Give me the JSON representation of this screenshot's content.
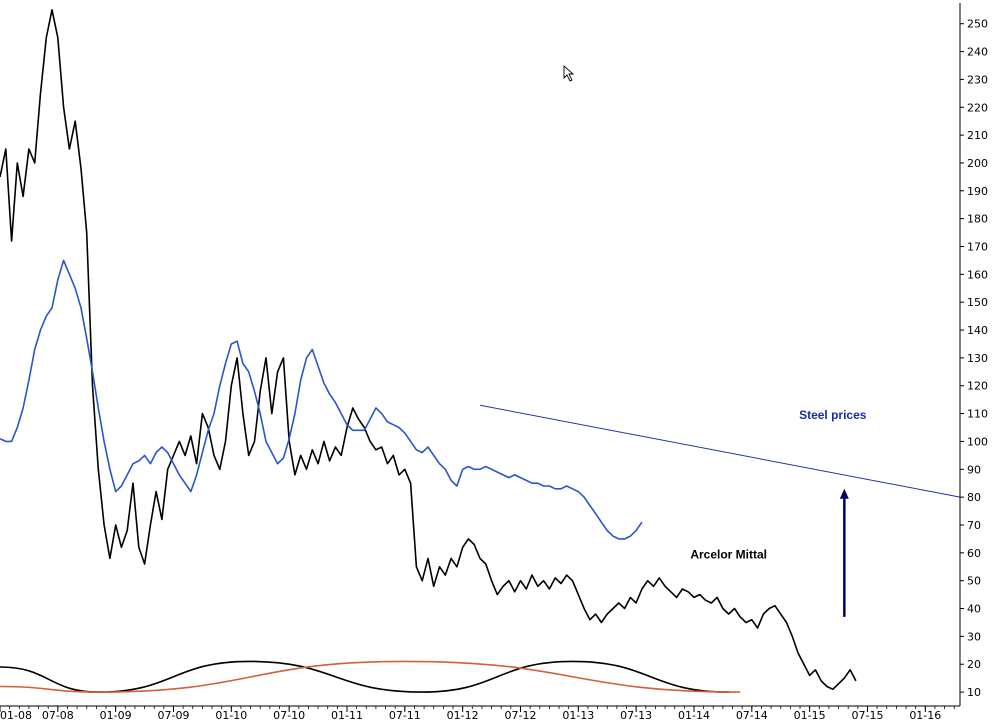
{
  "chart_data": {
    "type": "line",
    "title": "",
    "xlabel": "",
    "ylabel": "",
    "grid": false,
    "xlim": [
      2008.0,
      2016.3
    ],
    "ylim": [
      5,
      256
    ],
    "y_ticks": [
      10,
      20,
      30,
      40,
      50,
      60,
      70,
      80,
      90,
      100,
      110,
      120,
      130,
      140,
      150,
      160,
      170,
      180,
      190,
      200,
      210,
      220,
      230,
      240,
      250
    ],
    "x_ticks": [
      {
        "label": "01-08",
        "x": 2008.0
      },
      {
        "label": "07-08",
        "x": 2008.5
      },
      {
        "label": "01-09",
        "x": 2009.0
      },
      {
        "label": "07-09",
        "x": 2009.5
      },
      {
        "label": "01-10",
        "x": 2010.0
      },
      {
        "label": "07-10",
        "x": 2010.5
      },
      {
        "label": "01-11",
        "x": 2011.0
      },
      {
        "label": "07-11",
        "x": 2011.5
      },
      {
        "label": "01-12",
        "x": 2012.0
      },
      {
        "label": "07-12",
        "x": 2012.5
      },
      {
        "label": "01-13",
        "x": 2013.0
      },
      {
        "label": "07-13",
        "x": 2013.5
      },
      {
        "label": "01-14",
        "x": 2014.0
      },
      {
        "label": "07-14",
        "x": 2014.5
      },
      {
        "label": "01-15",
        "x": 2015.0
      },
      {
        "label": "07-15",
        "x": 2015.5
      },
      {
        "label": "01-16",
        "x": 2016.0
      }
    ],
    "series": [
      {
        "name": "Arcelor Mittal",
        "color": "#000000",
        "points": [
          [
            2008.0,
            195
          ],
          [
            2008.05,
            205
          ],
          [
            2008.1,
            172
          ],
          [
            2008.15,
            200
          ],
          [
            2008.2,
            188
          ],
          [
            2008.25,
            205
          ],
          [
            2008.3,
            200
          ],
          [
            2008.35,
            225
          ],
          [
            2008.4,
            245
          ],
          [
            2008.45,
            255
          ],
          [
            2008.5,
            245
          ],
          [
            2008.55,
            220
          ],
          [
            2008.6,
            205
          ],
          [
            2008.65,
            215
          ],
          [
            2008.7,
            198
          ],
          [
            2008.75,
            175
          ],
          [
            2008.8,
            120
          ],
          [
            2008.85,
            90
          ],
          [
            2008.9,
            70
          ],
          [
            2008.95,
            58
          ],
          [
            2009.0,
            70
          ],
          [
            2009.05,
            62
          ],
          [
            2009.1,
            68
          ],
          [
            2009.15,
            85
          ],
          [
            2009.2,
            62
          ],
          [
            2009.25,
            56
          ],
          [
            2009.3,
            70
          ],
          [
            2009.35,
            82
          ],
          [
            2009.4,
            72
          ],
          [
            2009.45,
            90
          ],
          [
            2009.5,
            95
          ],
          [
            2009.55,
            100
          ],
          [
            2009.6,
            95
          ],
          [
            2009.65,
            102
          ],
          [
            2009.7,
            92
          ],
          [
            2009.75,
            110
          ],
          [
            2009.8,
            105
          ],
          [
            2009.85,
            95
          ],
          [
            2009.9,
            90
          ],
          [
            2009.95,
            100
          ],
          [
            2010.0,
            120
          ],
          [
            2010.05,
            130
          ],
          [
            2010.1,
            110
          ],
          [
            2010.15,
            95
          ],
          [
            2010.2,
            100
          ],
          [
            2010.25,
            118
          ],
          [
            2010.3,
            130
          ],
          [
            2010.35,
            110
          ],
          [
            2010.4,
            125
          ],
          [
            2010.45,
            130
          ],
          [
            2010.5,
            100
          ],
          [
            2010.55,
            88
          ],
          [
            2010.6,
            95
          ],
          [
            2010.65,
            90
          ],
          [
            2010.7,
            97
          ],
          [
            2010.75,
            92
          ],
          [
            2010.8,
            100
          ],
          [
            2010.85,
            93
          ],
          [
            2010.9,
            98
          ],
          [
            2010.95,
            95
          ],
          [
            2011.0,
            105
          ],
          [
            2011.05,
            112
          ],
          [
            2011.1,
            108
          ],
          [
            2011.15,
            105
          ],
          [
            2011.2,
            100
          ],
          [
            2011.25,
            97
          ],
          [
            2011.3,
            98
          ],
          [
            2011.35,
            92
          ],
          [
            2011.4,
            95
          ],
          [
            2011.45,
            88
          ],
          [
            2011.5,
            90
          ],
          [
            2011.55,
            85
          ],
          [
            2011.6,
            55
          ],
          [
            2011.65,
            50
          ],
          [
            2011.7,
            58
          ],
          [
            2011.75,
            48
          ],
          [
            2011.8,
            55
          ],
          [
            2011.85,
            52
          ],
          [
            2011.9,
            58
          ],
          [
            2011.95,
            55
          ],
          [
            2012.0,
            62
          ],
          [
            2012.05,
            65
          ],
          [
            2012.1,
            63
          ],
          [
            2012.15,
            58
          ],
          [
            2012.2,
            56
          ],
          [
            2012.25,
            50
          ],
          [
            2012.3,
            45
          ],
          [
            2012.35,
            48
          ],
          [
            2012.4,
            50
          ],
          [
            2012.45,
            46
          ],
          [
            2012.5,
            50
          ],
          [
            2012.55,
            47
          ],
          [
            2012.6,
            52
          ],
          [
            2012.65,
            48
          ],
          [
            2012.7,
            50
          ],
          [
            2012.75,
            47
          ],
          [
            2012.8,
            51
          ],
          [
            2012.85,
            49
          ],
          [
            2012.9,
            52
          ],
          [
            2012.95,
            50
          ],
          [
            2013.0,
            45
          ],
          [
            2013.05,
            40
          ],
          [
            2013.1,
            36
          ],
          [
            2013.15,
            38
          ],
          [
            2013.2,
            35
          ],
          [
            2013.25,
            38
          ],
          [
            2013.3,
            40
          ],
          [
            2013.35,
            42
          ],
          [
            2013.4,
            40
          ],
          [
            2013.45,
            44
          ],
          [
            2013.5,
            42
          ],
          [
            2013.55,
            47
          ],
          [
            2013.6,
            50
          ],
          [
            2013.65,
            48
          ],
          [
            2013.7,
            51
          ],
          [
            2013.75,
            48
          ],
          [
            2013.8,
            46
          ],
          [
            2013.85,
            44
          ],
          [
            2013.9,
            47
          ],
          [
            2013.95,
            46
          ],
          [
            2014.0,
            44
          ],
          [
            2014.05,
            45
          ],
          [
            2014.1,
            43
          ],
          [
            2014.15,
            42
          ],
          [
            2014.2,
            44
          ],
          [
            2014.25,
            40
          ],
          [
            2014.3,
            38
          ],
          [
            2014.35,
            40
          ],
          [
            2014.4,
            37
          ],
          [
            2014.45,
            35
          ],
          [
            2014.5,
            36
          ],
          [
            2014.55,
            33
          ],
          [
            2014.6,
            38
          ],
          [
            2014.65,
            40
          ],
          [
            2014.7,
            41
          ],
          [
            2014.75,
            38
          ],
          [
            2014.8,
            35
          ],
          [
            2014.85,
            30
          ],
          [
            2014.9,
            24
          ],
          [
            2014.95,
            20
          ],
          [
            2015.0,
            16
          ],
          [
            2015.05,
            18
          ],
          [
            2015.1,
            14
          ],
          [
            2015.15,
            12
          ],
          [
            2015.2,
            11
          ],
          [
            2015.25,
            13
          ],
          [
            2015.3,
            15
          ],
          [
            2015.35,
            18
          ],
          [
            2015.4,
            14
          ]
        ]
      },
      {
        "name": "Steel prices",
        "color": "#2a55cc",
        "points": [
          [
            2008.0,
            101
          ],
          [
            2008.05,
            100
          ],
          [
            2008.1,
            100
          ],
          [
            2008.15,
            105
          ],
          [
            2008.2,
            112
          ],
          [
            2008.25,
            122
          ],
          [
            2008.3,
            133
          ],
          [
            2008.35,
            140
          ],
          [
            2008.4,
            145
          ],
          [
            2008.45,
            148
          ],
          [
            2008.5,
            158
          ],
          [
            2008.55,
            165
          ],
          [
            2008.6,
            160
          ],
          [
            2008.65,
            155
          ],
          [
            2008.7,
            148
          ],
          [
            2008.75,
            137
          ],
          [
            2008.8,
            125
          ],
          [
            2008.85,
            112
          ],
          [
            2008.9,
            100
          ],
          [
            2008.95,
            90
          ],
          [
            2009.0,
            82
          ],
          [
            2009.05,
            84
          ],
          [
            2009.1,
            88
          ],
          [
            2009.15,
            92
          ],
          [
            2009.2,
            93
          ],
          [
            2009.25,
            95
          ],
          [
            2009.3,
            92
          ],
          [
            2009.35,
            96
          ],
          [
            2009.4,
            98
          ],
          [
            2009.45,
            96
          ],
          [
            2009.5,
            92
          ],
          [
            2009.55,
            88
          ],
          [
            2009.6,
            85
          ],
          [
            2009.65,
            82
          ],
          [
            2009.7,
            88
          ],
          [
            2009.75,
            96
          ],
          [
            2009.8,
            104
          ],
          [
            2009.85,
            110
          ],
          [
            2009.9,
            120
          ],
          [
            2009.95,
            128
          ],
          [
            2010.0,
            135
          ],
          [
            2010.05,
            136
          ],
          [
            2010.1,
            128
          ],
          [
            2010.15,
            125
          ],
          [
            2010.2,
            118
          ],
          [
            2010.25,
            110
          ],
          [
            2010.3,
            100
          ],
          [
            2010.35,
            96
          ],
          [
            2010.4,
            92
          ],
          [
            2010.45,
            94
          ],
          [
            2010.5,
            101
          ],
          [
            2010.55,
            110
          ],
          [
            2010.6,
            122
          ],
          [
            2010.65,
            130
          ],
          [
            2010.7,
            133
          ],
          [
            2010.75,
            127
          ],
          [
            2010.8,
            121
          ],
          [
            2010.85,
            117
          ],
          [
            2010.9,
            114
          ],
          [
            2010.95,
            110
          ],
          [
            2011.0,
            106
          ],
          [
            2011.05,
            104
          ],
          [
            2011.1,
            104
          ],
          [
            2011.15,
            104
          ],
          [
            2011.2,
            108
          ],
          [
            2011.25,
            112
          ],
          [
            2011.3,
            110
          ],
          [
            2011.35,
            107
          ],
          [
            2011.4,
            106
          ],
          [
            2011.45,
            105
          ],
          [
            2011.5,
            103
          ],
          [
            2011.55,
            100
          ],
          [
            2011.6,
            97
          ],
          [
            2011.65,
            96
          ],
          [
            2011.7,
            98
          ],
          [
            2011.75,
            95
          ],
          [
            2011.8,
            92
          ],
          [
            2011.85,
            90
          ],
          [
            2011.9,
            86
          ],
          [
            2011.95,
            84
          ],
          [
            2012.0,
            90
          ],
          [
            2012.05,
            91
          ],
          [
            2012.1,
            90
          ],
          [
            2012.15,
            90
          ],
          [
            2012.2,
            91
          ],
          [
            2012.25,
            90
          ],
          [
            2012.3,
            89
          ],
          [
            2012.35,
            88
          ],
          [
            2012.4,
            87
          ],
          [
            2012.45,
            88
          ],
          [
            2012.5,
            87
          ],
          [
            2012.55,
            86
          ],
          [
            2012.6,
            85
          ],
          [
            2012.65,
            85
          ],
          [
            2012.7,
            84
          ],
          [
            2012.75,
            84
          ],
          [
            2012.8,
            83
          ],
          [
            2012.85,
            83
          ],
          [
            2012.9,
            84
          ],
          [
            2012.95,
            83
          ],
          [
            2013.0,
            82
          ],
          [
            2013.05,
            80
          ],
          [
            2013.1,
            77
          ],
          [
            2013.15,
            74
          ],
          [
            2013.2,
            71
          ],
          [
            2013.25,
            68
          ],
          [
            2013.3,
            66
          ],
          [
            2013.35,
            65
          ],
          [
            2013.4,
            65
          ],
          [
            2013.45,
            66
          ],
          [
            2013.5,
            68
          ],
          [
            2013.55,
            71
          ]
        ]
      }
    ],
    "trendline": {
      "color": "#2233aa",
      "points": [
        [
          2012.15,
          113
        ],
        [
          2016.3,
          80
        ]
      ]
    },
    "arrow": {
      "color": "#000066",
      "from": [
        2015.3,
        37
      ],
      "to": [
        2015.3,
        83
      ]
    },
    "cycles": [
      {
        "color": "#000000",
        "points": [
          [
            2008.0,
            19
          ],
          [
            2008.85,
            10
          ],
          [
            2010.15,
            21
          ],
          [
            2011.65,
            10
          ],
          [
            2012.95,
            21
          ],
          [
            2014.3,
            10
          ]
        ]
      },
      {
        "color": "#d2603a",
        "points": [
          [
            2008.0,
            12
          ],
          [
            2008.85,
            10
          ],
          [
            2011.5,
            21
          ],
          [
            2014.4,
            10
          ]
        ]
      }
    ],
    "annotations": [
      {
        "text": "Steel prices",
        "x": 2015.2,
        "y": 108,
        "color": "#1a2ab0"
      },
      {
        "text": "Arcelor Mittal",
        "x": 2014.3,
        "y": 58,
        "color": "#000000"
      }
    ]
  }
}
